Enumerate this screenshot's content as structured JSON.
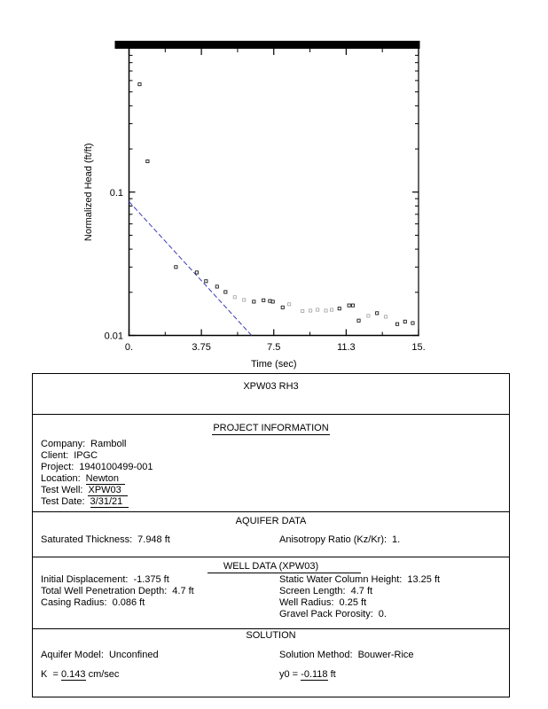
{
  "report": {
    "title": "XPW03 RH3",
    "sections": {
      "project": {
        "heading": "PROJECT INFORMATION",
        "company_label": "Company:",
        "company": "Ramboll",
        "client_label": "Client:",
        "client": "IPGC",
        "project_label": "Project:",
        "project": "1940100499-001",
        "location_label": "Location:",
        "location": "Newton",
        "test_well_label": "Test Well:",
        "test_well": "XPW03",
        "test_date_label": "Test Date:",
        "test_date": "3/31/21"
      },
      "aquifer": {
        "heading": "AQUIFER DATA",
        "saturated_thickness_label": "Saturated Thickness:",
        "saturated_thickness": "7.948 ft",
        "anisotropy_label": "Anisotropy Ratio (Kz/Kr):",
        "anisotropy": "1."
      },
      "well": {
        "heading": "WELL DATA (XPW03)",
        "initial_displacement_label": "Initial Displacement:",
        "initial_displacement": "-1.375 ft",
        "penetration_label": "Total Well Penetration Depth:",
        "penetration": "4.7 ft",
        "casing_radius_label": "Casing Radius:",
        "casing_radius": "0.086 ft",
        "static_column_label": "Static Water Column Height:",
        "static_column": "13.25 ft",
        "screen_length_label": "Screen Length:",
        "screen_length": "4.7 ft",
        "well_radius_label": "Well Radius:",
        "well_radius": "0.25 ft",
        "gravel_porosity_label": "Gravel Pack Porosity:",
        "gravel_porosity": "0."
      },
      "solution": {
        "heading": "SOLUTION",
        "aquifer_model_label": "Aquifer Model:",
        "aquifer_model": "Unconfined",
        "method_label": "Solution Method:",
        "method": "Bouwer-Rice",
        "k_label": "K",
        "k_eq": "=",
        "k_value": "0.143",
        "k_unit": "cm/sec",
        "y0_label": "y0 =",
        "y0_value": "-0.118",
        "y0_unit": "ft"
      }
    }
  },
  "chart_data": {
    "type": "scatter",
    "title": "",
    "xlabel": "Time (sec)",
    "ylabel": "Normalized Head (ft/ft)",
    "xlim": [
      0,
      15
    ],
    "ylim": [
      0.01,
      1.0
    ],
    "yscale": "log",
    "x_major_ticks": [
      0,
      3.75,
      7.5,
      11.25,
      15
    ],
    "x_major_labels": [
      "0.",
      "3.75",
      "7.5",
      "11.3",
      "15."
    ],
    "x_minor_ticks": [
      1.875,
      5.625,
      9.375,
      13.125
    ],
    "y_major_ticks": [
      0.1,
      0.01
    ],
    "y_major_labels": [
      "0.1",
      "0.01"
    ],
    "grid": false,
    "legend": false,
    "marker": "open-square",
    "marker_color": "#000000",
    "fit_line": {
      "style": "dashed",
      "color": "#3c3cb4",
      "points": [
        [
          0,
          0.0858
        ],
        [
          6.35,
          0.01
        ]
      ]
    },
    "series": [
      {
        "name": "observed",
        "points": [
          {
            "t": 0.55,
            "v": 0.565,
            "faint": false
          },
          {
            "t": 0.96,
            "v": 0.164,
            "faint": false
          },
          {
            "t": 2.43,
            "v": 0.03,
            "faint": false
          },
          {
            "t": 3.51,
            "v": 0.0275,
            "faint": false
          },
          {
            "t": 3.99,
            "v": 0.0239,
            "faint": false
          },
          {
            "t": 4.56,
            "v": 0.0219,
            "faint": false
          },
          {
            "t": 5.0,
            "v": 0.0201,
            "faint": false
          },
          {
            "t": 5.48,
            "v": 0.0185,
            "faint": true
          },
          {
            "t": 5.96,
            "v": 0.0177,
            "faint": true
          },
          {
            "t": 6.47,
            "v": 0.0172,
            "faint": false
          },
          {
            "t": 6.97,
            "v": 0.0176,
            "faint": false
          },
          {
            "t": 7.3,
            "v": 0.0174,
            "faint": false
          },
          {
            "t": 7.45,
            "v": 0.0172,
            "faint": false
          },
          {
            "t": 7.96,
            "v": 0.0157,
            "faint": false
          },
          {
            "t": 8.3,
            "v": 0.0165,
            "faint": true
          },
          {
            "t": 8.99,
            "v": 0.0148,
            "faint": true
          },
          {
            "t": 9.4,
            "v": 0.0149,
            "faint": true
          },
          {
            "t": 9.77,
            "v": 0.0151,
            "faint": true
          },
          {
            "t": 10.2,
            "v": 0.0149,
            "faint": true
          },
          {
            "t": 10.5,
            "v": 0.0151,
            "faint": true
          },
          {
            "t": 10.9,
            "v": 0.0154,
            "faint": false
          },
          {
            "t": 11.4,
            "v": 0.0162,
            "faint": false
          },
          {
            "t": 11.6,
            "v": 0.0162,
            "faint": false
          },
          {
            "t": 11.9,
            "v": 0.0127,
            "faint": false
          },
          {
            "t": 12.4,
            "v": 0.0137,
            "faint": true
          },
          {
            "t": 12.85,
            "v": 0.0143,
            "faint": false
          },
          {
            "t": 13.3,
            "v": 0.0135,
            "faint": true
          },
          {
            "t": 13.9,
            "v": 0.012,
            "faint": false
          },
          {
            "t": 14.3,
            "v": 0.0125,
            "faint": false
          },
          {
            "t": 14.7,
            "v": 0.0122,
            "faint": false
          }
        ]
      }
    ]
  }
}
